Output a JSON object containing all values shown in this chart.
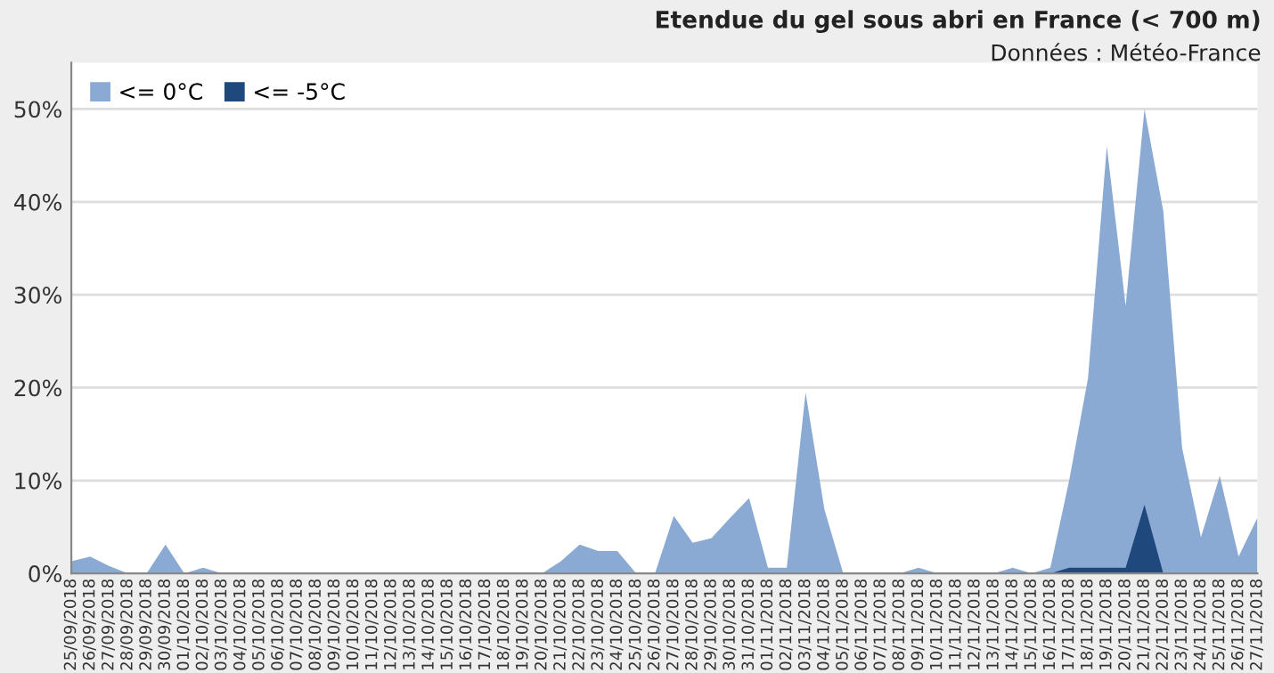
{
  "chart_data": {
    "type": "area",
    "title": "Etendue du gel sous abri en France (< 700 m)",
    "subtitle": "Données : Météo-France",
    "categories": [
      "25/09/2018",
      "26/09/2018",
      "27/09/2018",
      "28/09/2018",
      "29/09/2018",
      "30/09/2018",
      "01/10/2018",
      "02/10/2018",
      "03/10/2018",
      "04/10/2018",
      "05/10/2018",
      "06/10/2018",
      "07/10/2018",
      "08/10/2018",
      "09/10/2018",
      "10/10/2018",
      "11/10/2018",
      "12/10/2018",
      "13/10/2018",
      "14/10/2018",
      "15/10/2018",
      "16/10/2018",
      "17/10/2018",
      "18/10/2018",
      "19/10/2018",
      "20/10/2018",
      "21/10/2018",
      "22/10/2018",
      "23/10/2018",
      "24/10/2018",
      "25/10/2018",
      "26/10/2018",
      "27/10/2018",
      "28/10/2018",
      "29/10/2018",
      "30/10/2018",
      "31/10/2018",
      "01/11/2018",
      "02/11/2018",
      "03/11/2018",
      "04/11/2018",
      "05/11/2018",
      "06/11/2018",
      "07/11/2018",
      "08/11/2018",
      "09/11/2018",
      "10/11/2018",
      "11/11/2018",
      "12/11/2018",
      "13/11/2018",
      "14/11/2018",
      "15/11/2018",
      "16/11/2018",
      "17/11/2018",
      "18/11/2018",
      "19/11/2018",
      "20/11/2018",
      "21/11/2018",
      "22/11/2018",
      "23/11/2018",
      "24/11/2018",
      "25/11/2018",
      "26/11/2018",
      "27/11/2018"
    ],
    "series": [
      {
        "name": "<= 0°C",
        "color": "#8aaad4",
        "values": [
          1.3,
          1.8,
          0.8,
          0,
          0,
          3.1,
          0,
          0.6,
          0,
          0,
          0,
          0,
          0,
          0,
          0,
          0,
          0,
          0,
          0,
          0,
          0,
          0,
          0,
          0,
          0,
          0,
          1.3,
          3.1,
          2.4,
          2.4,
          0,
          0,
          6.2,
          3.3,
          3.8,
          6.0,
          8.1,
          0.6,
          0.6,
          19.5,
          6.9,
          0,
          0,
          0,
          0,
          0.6,
          0,
          0,
          0,
          0,
          0.6,
          0,
          0.6,
          10,
          21,
          46,
          28.8,
          50,
          39,
          13.5,
          3.9,
          10.5,
          1.8,
          6.0
        ]
      },
      {
        "name": "<= -5°C",
        "color": "#1f497d",
        "values": [
          0,
          0,
          0,
          0,
          0,
          0,
          0,
          0,
          0,
          0,
          0,
          0,
          0,
          0,
          0,
          0,
          0,
          0,
          0,
          0,
          0,
          0,
          0,
          0,
          0,
          0,
          0,
          0,
          0,
          0,
          0,
          0,
          0,
          0,
          0,
          0,
          0,
          0,
          0,
          0,
          0,
          0,
          0,
          0,
          0,
          0,
          0,
          0,
          0,
          0,
          0,
          0,
          0,
          0.6,
          0.6,
          0.6,
          0.6,
          7.4,
          0,
          0,
          0,
          0,
          0,
          0
        ]
      }
    ],
    "ylim": [
      0,
      55
    ],
    "yticks": [
      {
        "value": 0,
        "label": "0%"
      },
      {
        "value": 10,
        "label": "10%"
      },
      {
        "value": 20,
        "label": "20%"
      },
      {
        "value": 30,
        "label": "30%"
      },
      {
        "value": 40,
        "label": "40%"
      },
      {
        "value": 50,
        "label": "50%"
      }
    ],
    "grid": "y",
    "legend": "top left"
  }
}
